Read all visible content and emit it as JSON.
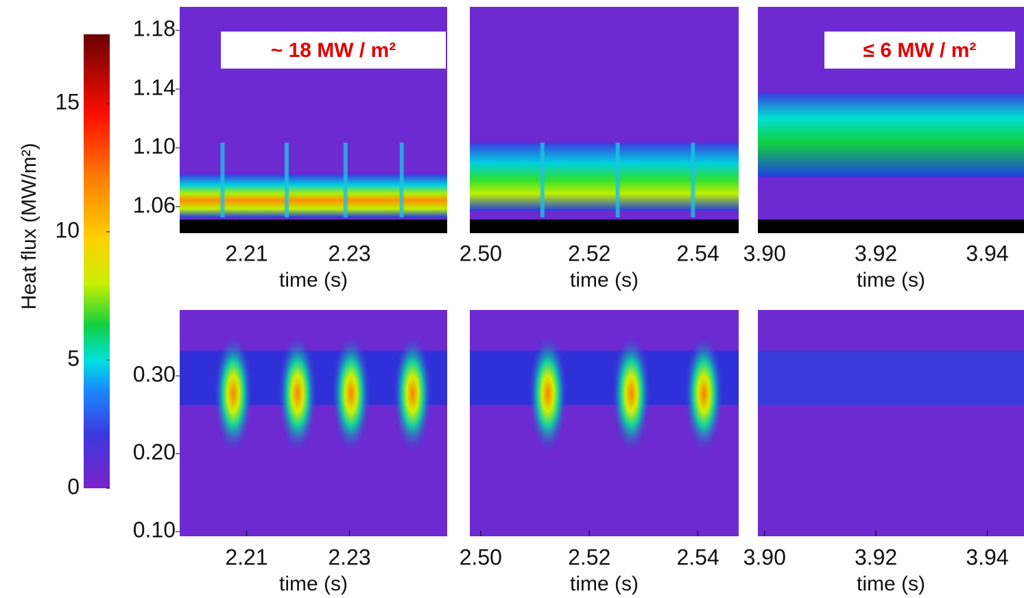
{
  "chart_data": [
    {
      "type": "colorbar",
      "label": "Heat flux  (MW/m²)",
      "ylim": [
        0,
        17.7
      ],
      "yticks": [
        0,
        5,
        10,
        15
      ]
    },
    {
      "type": "heatmap",
      "xlabel": "time (s)",
      "xlim": [
        2.197,
        2.249
      ],
      "xticks": [
        2.21,
        2.23
      ],
      "ylim": [
        1.042,
        1.196
      ],
      "yticks": [
        1.06,
        {
          "value": 1.1,
          "label": "1.10"
        },
        1.14,
        1.18
      ],
      "annotation": "~ 18 MW / m²"
    },
    {
      "type": "heatmap",
      "xlabel": "time (s)",
      "xlim": [
        2.498,
        2.5475
      ],
      "xticks": [
        {
          "value": 2.5,
          "label": "2.50"
        },
        2.52,
        2.54
      ],
      "ylim": [
        1.042,
        1.196
      ]
    },
    {
      "type": "heatmap",
      "xlabel": "time (s)",
      "xlim": [
        3.8988,
        3.9466
      ],
      "xticks": [
        {
          "value": 3.9,
          "label": "3.90"
        },
        3.92,
        3.94
      ],
      "ylim": [
        1.042,
        1.196
      ],
      "annotation": "≤ 6 MW / m²"
    },
    {
      "type": "heatmap",
      "xlabel": "time (s)",
      "xlim": [
        2.197,
        2.249
      ],
      "xticks": [
        2.21,
        2.23
      ],
      "ylim": [
        0.094,
        0.3846
      ],
      "yticks": [
        {
          "value": 0.1,
          "label": "0.10"
        },
        {
          "value": 0.2,
          "label": "0.20"
        },
        {
          "value": 0.3,
          "label": "0.30"
        }
      ]
    },
    {
      "type": "heatmap",
      "xlabel": "time (s)",
      "xlim": [
        2.498,
        2.5475
      ],
      "xticks": [
        {
          "value": 2.5,
          "label": "2.50"
        },
        2.52,
        2.54
      ],
      "ylim": [
        0.094,
        0.3846
      ]
    },
    {
      "type": "heatmap",
      "xlabel": "time (s)",
      "xlim": [
        3.8988,
        3.9466
      ],
      "xticks": [
        {
          "value": 3.9,
          "label": "3.90"
        },
        3.92,
        3.94
      ],
      "ylim": [
        0.094,
        0.3846
      ]
    }
  ]
}
